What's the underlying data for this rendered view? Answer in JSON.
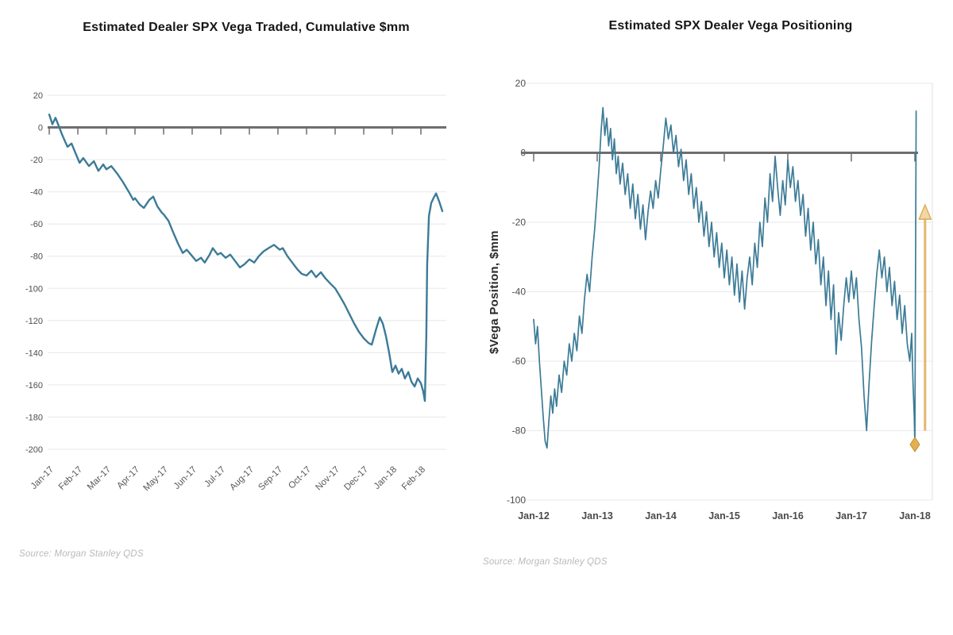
{
  "page": {
    "background": "#ffffff"
  },
  "chart_data": [
    {
      "key": "vega-traded",
      "type": "line",
      "title": "Estimated Dealer SPX Vega Traded, Cumulative $mm",
      "source": "Source: Morgan Stanley QDS",
      "xlabel": "",
      "ylabel": "",
      "ylim": [
        -200,
        20
      ],
      "xlim": [
        0,
        13.9
      ],
      "grid": true,
      "legend": "none",
      "line_color": "#3c7b97",
      "zero_axis_color": "#6e6e6e",
      "grid_color": "#ededed",
      "tick_label_color": "#4d4d4d",
      "yticks": [
        20,
        0,
        -20,
        -40,
        -60,
        -80,
        -100,
        -120,
        -140,
        -160,
        -180,
        -200
      ],
      "xticks": {
        "rotated": true,
        "positions": [
          0,
          1,
          2,
          3,
          4,
          5,
          6,
          7,
          8,
          9,
          10,
          11,
          12,
          13
        ],
        "labels": [
          "Jan-17",
          "Feb-17",
          "Mar-17",
          "Apr-17",
          "May-17",
          "Jun-17",
          "Jul-17",
          "Aug-17",
          "Sep-17",
          "Oct-17",
          "Nov-17",
          "Dec-17",
          "Jan-18",
          "Feb-18"
        ]
      },
      "series_name": "Cumulative dealer SPX vega traded ($mm), x in months since Jan-17",
      "points": [
        [
          0,
          8
        ],
        [
          0.11,
          2
        ],
        [
          0.22,
          6
        ],
        [
          0.33,
          1
        ],
        [
          0.44,
          -4
        ],
        [
          0.56,
          -9
        ],
        [
          0.64,
          -12
        ],
        [
          0.78,
          -10
        ],
        [
          0.92,
          -16
        ],
        [
          1.06,
          -22
        ],
        [
          1.19,
          -19
        ],
        [
          1.39,
          -24
        ],
        [
          1.56,
          -21
        ],
        [
          1.72,
          -27
        ],
        [
          1.89,
          -23
        ],
        [
          2.0,
          -26
        ],
        [
          2.17,
          -24
        ],
        [
          2.39,
          -29
        ],
        [
          2.58,
          -34
        ],
        [
          2.78,
          -40
        ],
        [
          2.94,
          -45
        ],
        [
          3.0,
          -44
        ],
        [
          3.17,
          -48
        ],
        [
          3.31,
          -50
        ],
        [
          3.5,
          -45
        ],
        [
          3.64,
          -43
        ],
        [
          3.78,
          -49
        ],
        [
          3.94,
          -53
        ],
        [
          4.0,
          -54
        ],
        [
          4.17,
          -58
        ],
        [
          4.33,
          -65
        ],
        [
          4.5,
          -72
        ],
        [
          4.67,
          -78
        ],
        [
          4.81,
          -76
        ],
        [
          5.0,
          -80
        ],
        [
          5.14,
          -83
        ],
        [
          5.31,
          -81
        ],
        [
          5.44,
          -84
        ],
        [
          5.61,
          -79
        ],
        [
          5.72,
          -75
        ],
        [
          5.89,
          -79
        ],
        [
          6.0,
          -78
        ],
        [
          6.17,
          -81
        ],
        [
          6.33,
          -79
        ],
        [
          6.5,
          -83
        ],
        [
          6.67,
          -87
        ],
        [
          6.83,
          -85
        ],
        [
          7.0,
          -82
        ],
        [
          7.17,
          -84
        ],
        [
          7.33,
          -80
        ],
        [
          7.5,
          -77
        ],
        [
          7.67,
          -75
        ],
        [
          7.86,
          -73
        ],
        [
          8.06,
          -76
        ],
        [
          8.17,
          -75
        ],
        [
          8.33,
          -80
        ],
        [
          8.5,
          -84
        ],
        [
          8.67,
          -88
        ],
        [
          8.83,
          -91
        ],
        [
          9.0,
          -92
        ],
        [
          9.17,
          -89
        ],
        [
          9.33,
          -93
        ],
        [
          9.5,
          -90
        ],
        [
          9.67,
          -94
        ],
        [
          9.83,
          -97
        ],
        [
          10.0,
          -100
        ],
        [
          10.17,
          -105
        ],
        [
          10.33,
          -110
        ],
        [
          10.5,
          -116
        ],
        [
          10.67,
          -122
        ],
        [
          10.83,
          -127
        ],
        [
          11.0,
          -131
        ],
        [
          11.17,
          -134
        ],
        [
          11.28,
          -135
        ],
        [
          11.44,
          -125
        ],
        [
          11.56,
          -118
        ],
        [
          11.67,
          -122
        ],
        [
          11.78,
          -130
        ],
        [
          11.89,
          -140
        ],
        [
          12.0,
          -152
        ],
        [
          12.11,
          -148
        ],
        [
          12.22,
          -153
        ],
        [
          12.33,
          -150
        ],
        [
          12.44,
          -156
        ],
        [
          12.56,
          -152
        ],
        [
          12.67,
          -158
        ],
        [
          12.78,
          -161
        ],
        [
          12.89,
          -156
        ],
        [
          13.0,
          -159
        ],
        [
          13.08,
          -164
        ],
        [
          13.14,
          -170
        ],
        [
          13.19,
          -130
        ],
        [
          13.22,
          -85
        ],
        [
          13.28,
          -55
        ],
        [
          13.36,
          -47
        ],
        [
          13.44,
          -44
        ],
        [
          13.53,
          -41
        ],
        [
          13.64,
          -46
        ],
        [
          13.75,
          -52
        ]
      ]
    },
    {
      "key": "vega-positioning",
      "type": "line",
      "title": "Estimated SPX Dealer Vega Positioning",
      "source": "Source: Morgan Stanley QDS",
      "xlabel": "",
      "ylabel": "$Vega Position, $mm",
      "ylim": [
        -100,
        20
      ],
      "xlim": [
        0,
        6.3
      ],
      "grid": true,
      "legend": "none",
      "line_color": "#3c7b97",
      "zero_axis_color": "#6e6e6e",
      "grid_color": "#ededed",
      "tick_label_color": "#4d4d4d",
      "yticks": [
        20,
        0,
        -20,
        -40,
        -60,
        -80,
        -100
      ],
      "xticks": {
        "rotated": false,
        "positions": [
          0,
          1,
          2,
          3,
          4,
          5,
          6
        ],
        "labels": [
          "Jan-12",
          "Jan-13",
          "Jan-14",
          "Jan-15",
          "Jan-16",
          "Jan-17",
          "Jan-18"
        ]
      },
      "series_name": "Estimated dealer vega position ($mm), x in years since Jan-12",
      "points": [
        [
          0,
          -48
        ],
        [
          0.03,
          -55
        ],
        [
          0.06,
          -50
        ],
        [
          0.09,
          -60
        ],
        [
          0.12,
          -68
        ],
        [
          0.15,
          -76
        ],
        [
          0.18,
          -83
        ],
        [
          0.21,
          -85
        ],
        [
          0.24,
          -77
        ],
        [
          0.27,
          -70
        ],
        [
          0.3,
          -75
        ],
        [
          0.33,
          -68
        ],
        [
          0.36,
          -73
        ],
        [
          0.4,
          -64
        ],
        [
          0.44,
          -69
        ],
        [
          0.48,
          -60
        ],
        [
          0.52,
          -64
        ],
        [
          0.56,
          -55
        ],
        [
          0.6,
          -60
        ],
        [
          0.64,
          -52
        ],
        [
          0.68,
          -57
        ],
        [
          0.72,
          -47
        ],
        [
          0.76,
          -52
        ],
        [
          0.8,
          -42
        ],
        [
          0.84,
          -35
        ],
        [
          0.88,
          -40
        ],
        [
          0.92,
          -30
        ],
        [
          0.96,
          -22
        ],
        [
          1,
          -12
        ],
        [
          1.03,
          -4
        ],
        [
          1.06,
          6
        ],
        [
          1.09,
          13
        ],
        [
          1.12,
          5
        ],
        [
          1.15,
          10
        ],
        [
          1.18,
          2
        ],
        [
          1.21,
          7
        ],
        [
          1.24,
          -2
        ],
        [
          1.27,
          4
        ],
        [
          1.3,
          -6
        ],
        [
          1.33,
          -1
        ],
        [
          1.36,
          -9
        ],
        [
          1.4,
          -3
        ],
        [
          1.44,
          -12
        ],
        [
          1.48,
          -6
        ],
        [
          1.52,
          -16
        ],
        [
          1.56,
          -9
        ],
        [
          1.6,
          -19
        ],
        [
          1.64,
          -12
        ],
        [
          1.68,
          -22
        ],
        [
          1.72,
          -15
        ],
        [
          1.76,
          -25
        ],
        [
          1.8,
          -17
        ],
        [
          1.84,
          -11
        ],
        [
          1.88,
          -16
        ],
        [
          1.92,
          -8
        ],
        [
          1.96,
          -13
        ],
        [
          2,
          -5
        ],
        [
          2.04,
          2
        ],
        [
          2.08,
          10
        ],
        [
          2.12,
          4
        ],
        [
          2.16,
          8
        ],
        [
          2.2,
          0
        ],
        [
          2.24,
          5
        ],
        [
          2.28,
          -4
        ],
        [
          2.32,
          1
        ],
        [
          2.36,
          -8
        ],
        [
          2.4,
          -2
        ],
        [
          2.44,
          -12
        ],
        [
          2.48,
          -6
        ],
        [
          2.52,
          -16
        ],
        [
          2.56,
          -10
        ],
        [
          2.6,
          -20
        ],
        [
          2.64,
          -14
        ],
        [
          2.68,
          -24
        ],
        [
          2.72,
          -17
        ],
        [
          2.76,
          -27
        ],
        [
          2.8,
          -20
        ],
        [
          2.84,
          -30
        ],
        [
          2.88,
          -23
        ],
        [
          2.92,
          -33
        ],
        [
          2.96,
          -26
        ],
        [
          3,
          -36
        ],
        [
          3.04,
          -28
        ],
        [
          3.08,
          -38
        ],
        [
          3.12,
          -30
        ],
        [
          3.16,
          -41
        ],
        [
          3.2,
          -32
        ],
        [
          3.24,
          -43
        ],
        [
          3.28,
          -34
        ],
        [
          3.32,
          -45
        ],
        [
          3.36,
          -36
        ],
        [
          3.4,
          -30
        ],
        [
          3.44,
          -38
        ],
        [
          3.48,
          -26
        ],
        [
          3.52,
          -33
        ],
        [
          3.56,
          -20
        ],
        [
          3.6,
          -27
        ],
        [
          3.64,
          -13
        ],
        [
          3.68,
          -20
        ],
        [
          3.72,
          -6
        ],
        [
          3.76,
          -14
        ],
        [
          3.8,
          -1
        ],
        [
          3.84,
          -10
        ],
        [
          3.88,
          -18
        ],
        [
          3.92,
          -8
        ],
        [
          3.96,
          -15
        ],
        [
          4,
          -2
        ],
        [
          4.04,
          -10
        ],
        [
          4.08,
          -4
        ],
        [
          4.12,
          -14
        ],
        [
          4.16,
          -8
        ],
        [
          4.2,
          -18
        ],
        [
          4.24,
          -12
        ],
        [
          4.28,
          -24
        ],
        [
          4.32,
          -16
        ],
        [
          4.36,
          -28
        ],
        [
          4.4,
          -20
        ],
        [
          4.44,
          -32
        ],
        [
          4.48,
          -25
        ],
        [
          4.52,
          -38
        ],
        [
          4.56,
          -30
        ],
        [
          4.6,
          -44
        ],
        [
          4.64,
          -34
        ],
        [
          4.68,
          -48
        ],
        [
          4.72,
          -38
        ],
        [
          4.76,
          -58
        ],
        [
          4.8,
          -46
        ],
        [
          4.84,
          -54
        ],
        [
          4.88,
          -44
        ],
        [
          4.92,
          -36
        ],
        [
          4.96,
          -43
        ],
        [
          5,
          -34
        ],
        [
          5.04,
          -42
        ],
        [
          5.08,
          -36
        ],
        [
          5.12,
          -48
        ],
        [
          5.16,
          -56
        ],
        [
          5.2,
          -70
        ],
        [
          5.24,
          -80
        ],
        [
          5.28,
          -66
        ],
        [
          5.32,
          -54
        ],
        [
          5.36,
          -44
        ],
        [
          5.4,
          -35
        ],
        [
          5.44,
          -28
        ],
        [
          5.48,
          -36
        ],
        [
          5.52,
          -30
        ],
        [
          5.56,
          -40
        ],
        [
          5.6,
          -33
        ],
        [
          5.64,
          -44
        ],
        [
          5.68,
          -37
        ],
        [
          5.72,
          -48
        ],
        [
          5.76,
          -41
        ],
        [
          5.8,
          -52
        ],
        [
          5.84,
          -44
        ],
        [
          5.88,
          -55
        ],
        [
          5.92,
          -60
        ],
        [
          5.95,
          -52
        ],
        [
          5.97,
          -66
        ],
        [
          5.99,
          -76
        ],
        [
          6.0,
          -84
        ],
        [
          6.02,
          12
        ]
      ],
      "annotations": {
        "diamond_marker": {
          "x": 6.0,
          "y": -84,
          "fill": "#e2b054",
          "stroke": "#c28f2c"
        },
        "up_arrow": {
          "x": 6.16,
          "y_from": -80,
          "y_to": -15,
          "fill": "#f2d5a2",
          "stroke": "#dba64a"
        }
      }
    }
  ]
}
